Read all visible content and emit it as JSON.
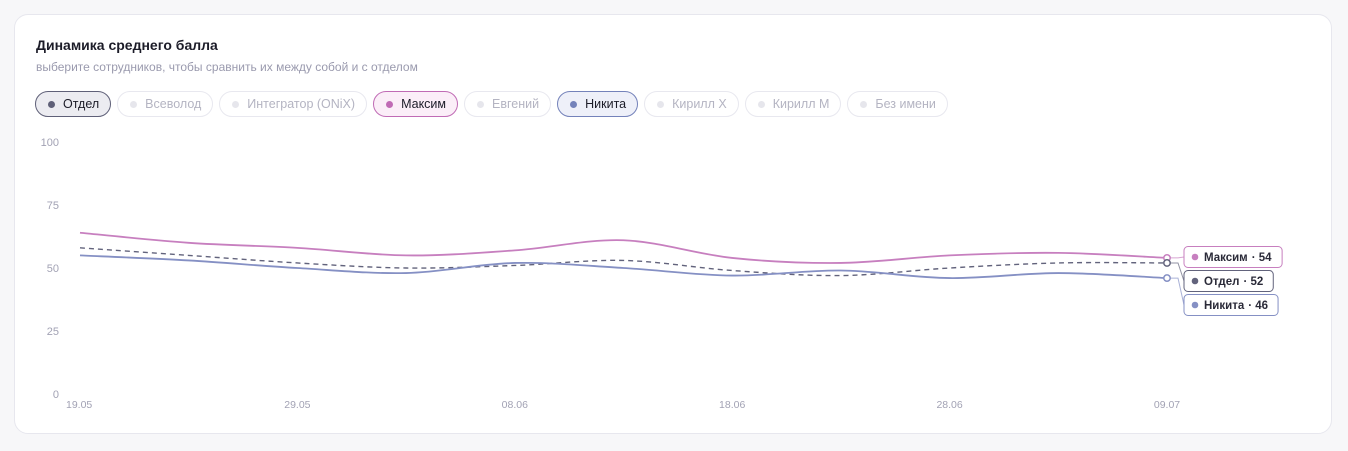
{
  "header": {
    "title": "Динамика среднего балла",
    "subtitle": "выберите сотрудников, чтобы сравнить их между собой и с отделом"
  },
  "chips": [
    {
      "label": "Отдел",
      "active": true,
      "color": "#5f6078",
      "bg": "#ececf1",
      "border": "#5f6078"
    },
    {
      "label": "Всеволод",
      "active": false
    },
    {
      "label": "Интегратор (ONiX)",
      "active": false
    },
    {
      "label": "Максим",
      "active": true,
      "color": "#c06bb5",
      "bg": "#fbeef8",
      "border": "#c06bb5"
    },
    {
      "label": "Евгений",
      "active": false
    },
    {
      "label": "Никита",
      "active": true,
      "color": "#7482ba",
      "bg": "#eef0f9",
      "border": "#7482ba"
    },
    {
      "label": "Кирилл Х",
      "active": false
    },
    {
      "label": "Кирилл М",
      "active": false
    },
    {
      "label": "Без имени",
      "active": false
    }
  ],
  "chart_data": {
    "type": "line",
    "ylim": [
      0,
      100
    ],
    "yticks": [
      0,
      25,
      50,
      75,
      100
    ],
    "xtick_labels": [
      "19.05",
      "29.05",
      "08.06",
      "18.06",
      "28.06",
      "09.07"
    ],
    "x": [
      "19.05",
      "24.05",
      "29.05",
      "03.06",
      "08.06",
      "13.06",
      "18.06",
      "23.06",
      "28.06",
      "03.07",
      "09.07"
    ],
    "grid": false,
    "series": [
      {
        "name": "Максим",
        "color": "#c77fbf",
        "dashed": false,
        "end_value": 54,
        "values": [
          64,
          60,
          58,
          55,
          57,
          61,
          54,
          52,
          55,
          56,
          54
        ]
      },
      {
        "name": "Отдел",
        "color": "#62637c",
        "dashed": true,
        "end_value": 52,
        "values": [
          58,
          55,
          52,
          50,
          51,
          53,
          49,
          47,
          50,
          52,
          52
        ]
      },
      {
        "name": "Никита",
        "color": "#8590c4",
        "dashed": false,
        "end_value": 46,
        "values": [
          55,
          53,
          50,
          48,
          52,
          50,
          47,
          49,
          46,
          48,
          46
        ]
      }
    ]
  }
}
